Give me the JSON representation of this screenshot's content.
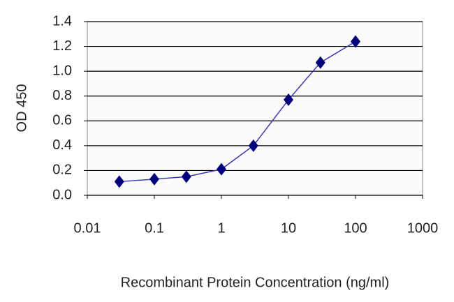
{
  "chart_data": {
    "type": "line",
    "x_label": "Recombinant Protein Concentration (ng/ml)",
    "y_label": "OD 450",
    "xscale": "log",
    "x": [
      0.03,
      0.1,
      0.3,
      1,
      3,
      10,
      30,
      100
    ],
    "series": [
      {
        "color": "#3a3ab0",
        "marker_color": "#00007a",
        "values": [
          0.11,
          0.13,
          0.15,
          0.21,
          0.4,
          0.77,
          1.07,
          1.24
        ]
      }
    ],
    "xlim": [
      0.01,
      1000
    ],
    "xticks": [
      0.01,
      0.1,
      1,
      10,
      100,
      1000
    ],
    "ylim": [
      0,
      1.4
    ],
    "yticks": [
      {
        "value": 0,
        "label": "0.0"
      },
      0.2,
      0.4,
      0.6,
      0.8,
      {
        "value": 1,
        "label": "1.0"
      },
      1.2,
      1.4
    ],
    "grid": true
  }
}
